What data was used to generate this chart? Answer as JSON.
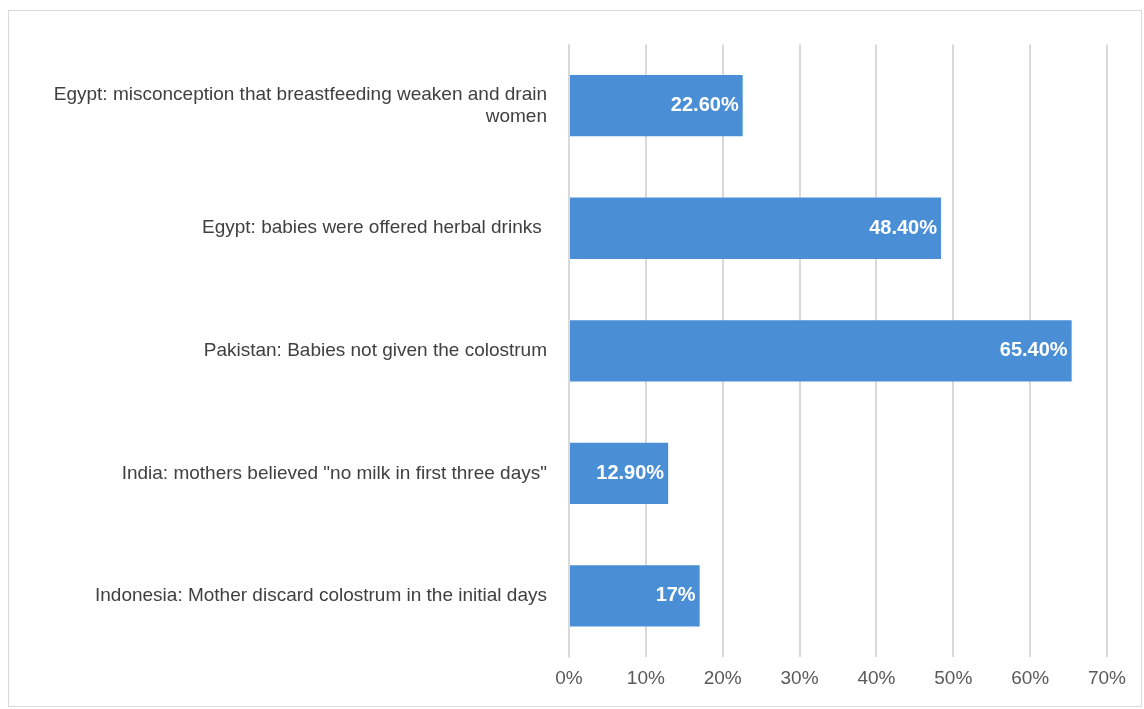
{
  "chart_data": {
    "type": "bar",
    "orientation": "horizontal",
    "categories": [
      "Egypt: misconception that breastfeeding weaken and drain women",
      "Egypt: babies were offered herbal drinks ",
      "Pakistan: Babies not given the colostrum",
      "India: mothers believed \"no milk in first three days\"",
      "Indonesia: Mother discard colostrum in the initial days"
    ],
    "values": [
      22.6,
      48.4,
      65.4,
      12.9,
      17
    ],
    "value_labels": [
      "22.60%",
      "48.40%",
      "65.40%",
      "12.90%",
      "17%"
    ],
    "color": "#4a8fd6",
    "xlim": [
      0,
      70
    ],
    "xticks": [
      {
        "value": 0,
        "label": "0%"
      },
      {
        "value": 10,
        "label": "10%"
      },
      {
        "value": 20,
        "label": "20%"
      },
      {
        "value": 30,
        "label": "30%"
      },
      {
        "value": 40,
        "label": "40%"
      },
      {
        "value": 50,
        "label": "50%"
      },
      {
        "value": 60,
        "label": "60%"
      },
      {
        "value": 70,
        "label": "70%"
      }
    ],
    "grid": "x",
    "legend": false
  }
}
